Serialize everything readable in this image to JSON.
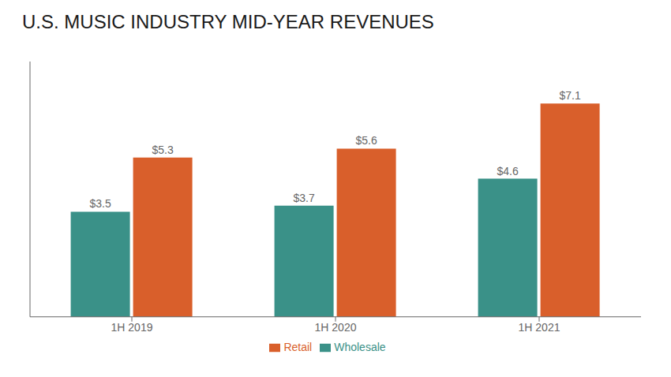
{
  "chart_data": {
    "type": "bar",
    "title": "U.S. MUSIC INDUSTRY MID-YEAR REVENUES",
    "categories": [
      "1H 2019",
      "1H 2020",
      "1H 2021"
    ],
    "series": [
      {
        "name": "Wholesale",
        "color": "#3a9188",
        "values": [
          3.5,
          3.7,
          4.6
        ],
        "value_labels": [
          "$3.5",
          "$3.7",
          "$4.6"
        ]
      },
      {
        "name": "Retail",
        "color": "#d95f2b",
        "values": [
          5.3,
          5.6,
          7.1
        ],
        "value_labels": [
          "$5.3",
          "$5.6",
          "$7.1"
        ]
      }
    ],
    "ylim": [
      0,
      8.5
    ],
    "data_labels": true,
    "tick_labels": "x",
    "legend": "bottom",
    "grid": false
  }
}
